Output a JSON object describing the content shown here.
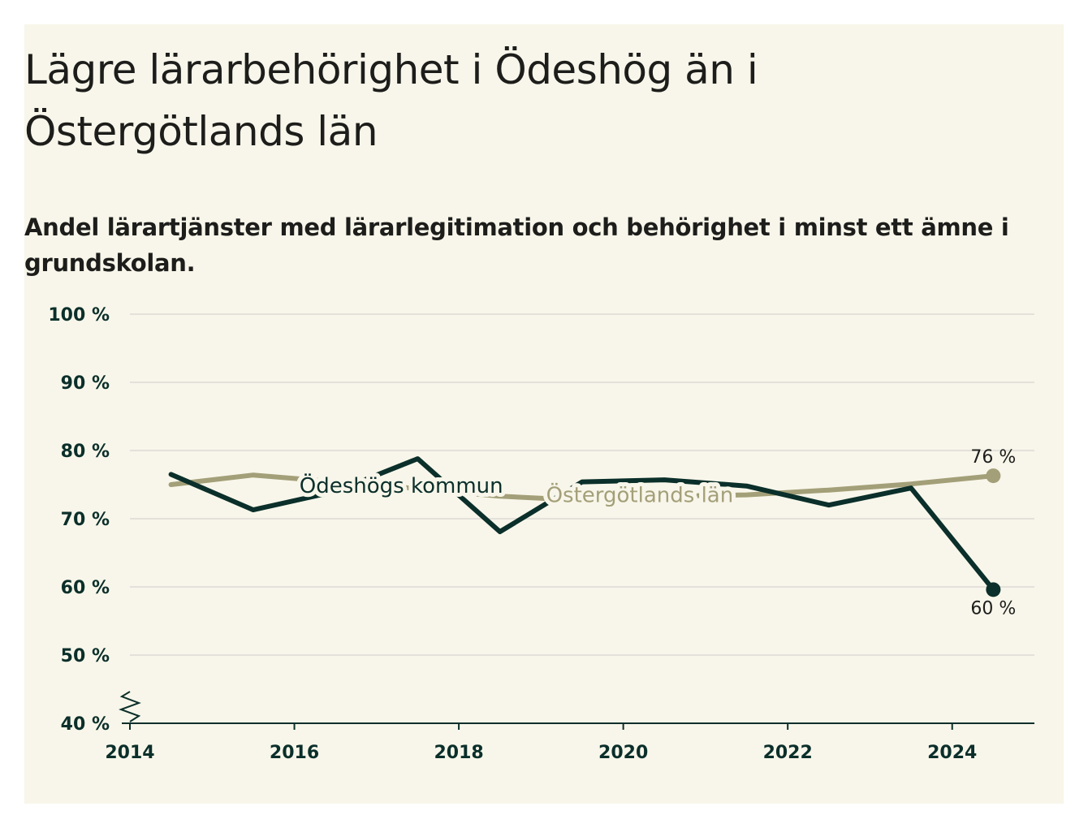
{
  "title": "Lägre lärarbehörighet i Ödeshög än i Östergötlands län",
  "subtitle": "Andel lärartjänster med lärarlegitimation och behörighet i minst ett ämne i grundskolan.",
  "colors": {
    "background": "#f8f6ea",
    "odeshog": "#0b2f2a",
    "lan": "#a39f78",
    "grid": "#dcdad4",
    "text": "#1d1d1b"
  },
  "chart_data": {
    "type": "line",
    "ylim": [
      40,
      100
    ],
    "xlim": [
      2014,
      2025
    ],
    "yticks": [
      100,
      90,
      80,
      70,
      60,
      50,
      40
    ],
    "ytick_labels": [
      "100 %",
      "90 %",
      "80 %",
      "70 %",
      "60 %",
      "50 %",
      "40 %"
    ],
    "xticks": [
      2014,
      2016,
      2018,
      2020,
      2022,
      2024
    ],
    "xtick_labels": [
      "2014",
      "2016",
      "2018",
      "2020",
      "2022",
      "2024"
    ],
    "axis_break": true,
    "grid": true,
    "series": [
      {
        "name": "Östergötlands län",
        "x": [
          2014.5,
          2015.5,
          2016.5,
          2017.5,
          2018.5,
          2019.5,
          2020.5,
          2021.5,
          2022.5,
          2023.5,
          2024.5
        ],
        "values": [
          75.0,
          76.4,
          75.4,
          74.4,
          73.3,
          72.7,
          73.3,
          73.5,
          74.2,
          75.1,
          76.3
        ],
        "end_label": "76 %",
        "label_year": 2020.2,
        "label_value": 73.5
      },
      {
        "name": "Ödeshögs kommun",
        "x": [
          2014.5,
          2015.5,
          2016.5,
          2017.5,
          2018.5,
          2019.5,
          2020.5,
          2021.5,
          2022.5,
          2023.5,
          2024.5
        ],
        "values": [
          76.5,
          71.3,
          74.0,
          78.8,
          68.1,
          75.4,
          75.7,
          74.8,
          72.0,
          74.5,
          59.6
        ],
        "end_label": "60 %",
        "label_year": 2017.3,
        "label_value": 74.9
      }
    ]
  }
}
